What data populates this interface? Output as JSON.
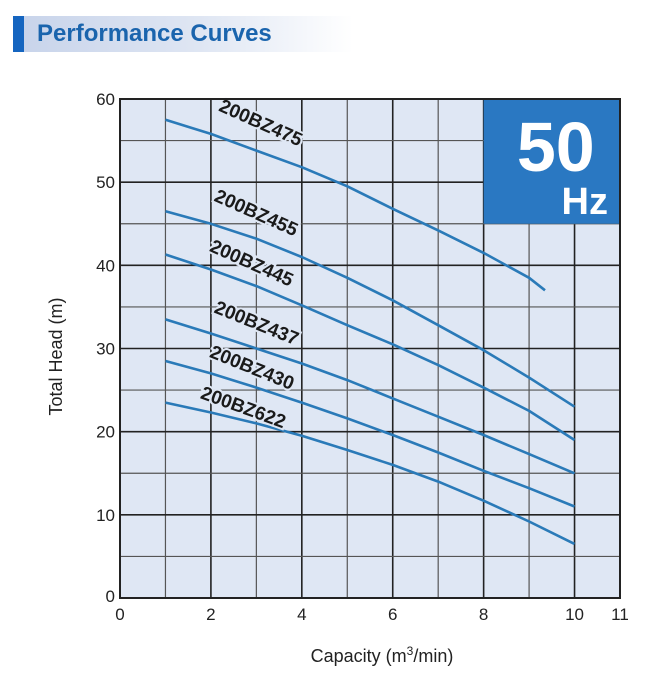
{
  "header": {
    "title": "Performance Curves"
  },
  "badge": {
    "value": "50",
    "unit": "Hz"
  },
  "colors": {
    "accent": "#1565c0",
    "curve": "#2a7ab8",
    "plot_bg": "#dfe7f4",
    "badge_bg": "#2a78c2"
  },
  "chart_data": {
    "type": "line",
    "title": "Performance Curves",
    "xlabel": "Capacity (m³/min)",
    "xlabel_parts": {
      "pre": "Capacity (m",
      "sup": "3",
      "post": "/min)"
    },
    "ylabel": "Total Head (m)",
    "xlim": [
      0,
      11
    ],
    "ylim": [
      0,
      60
    ],
    "xticks": [
      0,
      2,
      4,
      6,
      8,
      10,
      11
    ],
    "yticks": [
      0,
      10,
      20,
      30,
      40,
      50,
      60
    ],
    "grid": true,
    "legend": "inline-labels",
    "series": [
      {
        "name": "200BZ475",
        "x": [
          1,
          2,
          3,
          4,
          5,
          6,
          7,
          8,
          9,
          9.35
        ],
        "y": [
          57.5,
          55.8,
          53.8,
          51.8,
          49.5,
          46.8,
          44.2,
          41.5,
          38.5,
          37
        ]
      },
      {
        "name": "200BZ455",
        "x": [
          1,
          2,
          3,
          4,
          5,
          6,
          7,
          8,
          9,
          10
        ],
        "y": [
          46.5,
          45,
          43.2,
          41,
          38.5,
          35.8,
          32.8,
          29.8,
          26.5,
          23
        ]
      },
      {
        "name": "200BZ445",
        "x": [
          1,
          2,
          3,
          4,
          5,
          6,
          7,
          8,
          9,
          10
        ],
        "y": [
          41.3,
          39.5,
          37.5,
          35.2,
          32.8,
          30.5,
          28,
          25.3,
          22.5,
          19
        ]
      },
      {
        "name": "200BZ437",
        "x": [
          1,
          2,
          3,
          4,
          5,
          6,
          7,
          8,
          9,
          10
        ],
        "y": [
          33.5,
          31.8,
          30,
          28.2,
          26.2,
          24,
          21.8,
          19.6,
          17.3,
          15
        ]
      },
      {
        "name": "200BZ430",
        "x": [
          1,
          2,
          3,
          4,
          5,
          6,
          7,
          8,
          9,
          10
        ],
        "y": [
          28.5,
          27,
          25.3,
          23.5,
          21.6,
          19.6,
          17.5,
          15.3,
          13.2,
          11
        ]
      },
      {
        "name": "200BZ622",
        "x": [
          1,
          2,
          3,
          4,
          5,
          6,
          7,
          8,
          9,
          10
        ],
        "y": [
          23.5,
          22.3,
          21,
          19.5,
          17.8,
          16,
          14,
          11.7,
          9.2,
          6.5
        ]
      }
    ],
    "annotation": "50 Hz"
  }
}
